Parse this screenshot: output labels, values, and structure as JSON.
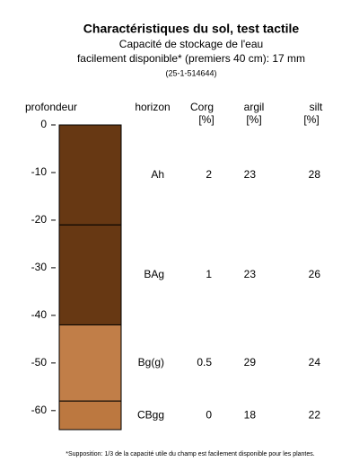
{
  "chart_data": {
    "type": "soil-profile",
    "title": "Charactéristiques du sol, test tactile",
    "subtitle": [
      "Capacité de stockage de l'eau",
      "facilement disponible* (premiers 40 cm): 17 mm"
    ],
    "site_id": "(25-1-514644)",
    "ylabel": "profondeur",
    "columns": {
      "horizon": "horizon",
      "corg": [
        "Corg",
        "[%]"
      ],
      "argil": [
        "argil",
        "[%]"
      ],
      "silt": [
        "silt",
        "[%]"
      ]
    },
    "ylim": [
      -64,
      0
    ],
    "yticks": [
      0,
      -10,
      -20,
      -30,
      -40,
      -50,
      -60
    ],
    "layers": [
      {
        "top": 0,
        "bottom": -21,
        "horizon": "Ah",
        "corg": 2,
        "argil": 23,
        "silt": 28,
        "color": "#673813"
      },
      {
        "top": -21,
        "bottom": -42,
        "horizon": "BAg",
        "corg": 1,
        "argil": 23,
        "silt": 26,
        "color": "#673813"
      },
      {
        "top": -42,
        "bottom": -58,
        "horizon": "Bg(g)",
        "corg": 0.5,
        "argil": 29,
        "silt": 24,
        "color": "#c17e48"
      },
      {
        "top": -58,
        "bottom": -64,
        "horizon": "CBgg",
        "corg": 0,
        "argil": 18,
        "silt": 22,
        "color": "#bc7840"
      }
    ],
    "footnote": "*Supposition: 1/3 de la capacité utile du champ est facilement disponible pour les plantes."
  }
}
